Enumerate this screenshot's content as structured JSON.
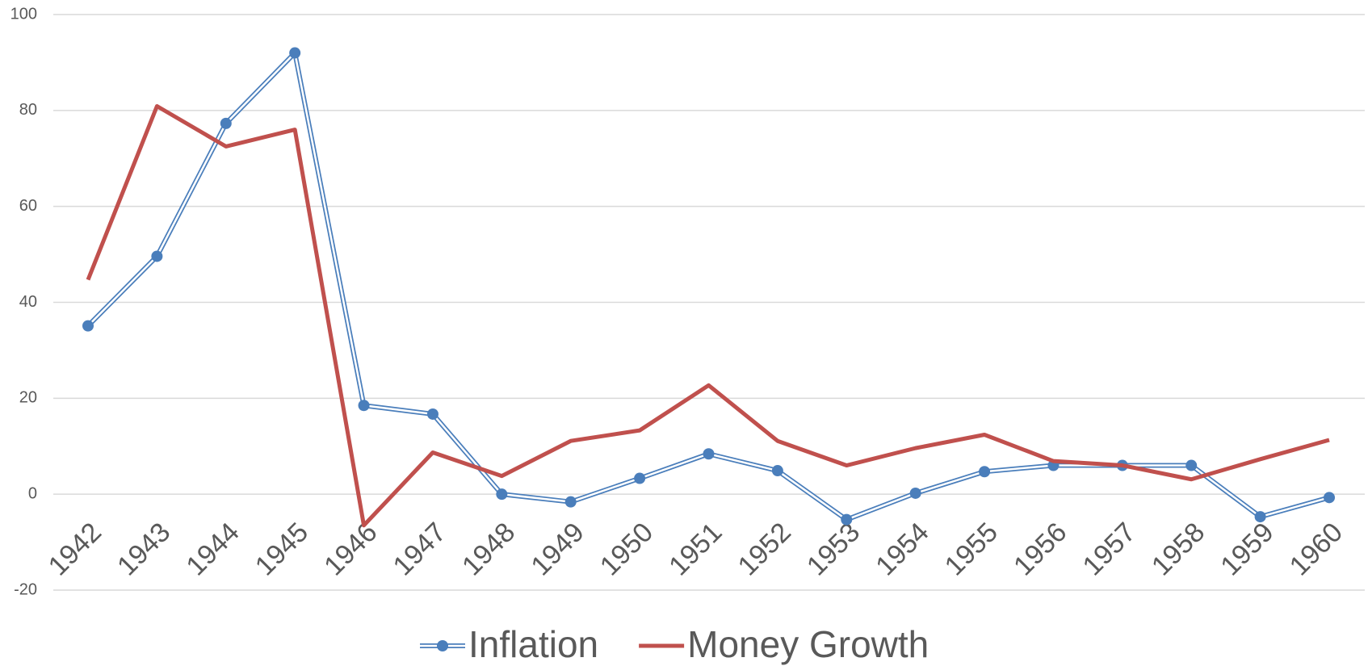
{
  "chart_data": {
    "type": "line",
    "categories": [
      "1942",
      "1943",
      "1944",
      "1945",
      "1946",
      "1947",
      "1948",
      "1949",
      "1950",
      "1951",
      "1952",
      "1953",
      "1954",
      "1955",
      "1956",
      "1957",
      "1958",
      "1959",
      "1960"
    ],
    "series": [
      {
        "name": "Inflation",
        "color": "#4a7ebb",
        "marker": true,
        "values": [
          35.1,
          49.6,
          77.3,
          92,
          18.5,
          16.7,
          0,
          -1.6,
          3.3,
          8.4,
          4.9,
          -5.3,
          0.2,
          4.7,
          6,
          6,
          6,
          -4.7,
          -0.7
        ]
      },
      {
        "name": "Money Growth",
        "color": "#c0504d",
        "marker": false,
        "values": [
          44.7,
          80.9,
          72.5,
          76,
          -6.5,
          8.7,
          3.8,
          11.1,
          13.3,
          22.7,
          11.1,
          6,
          9.6,
          12.4,
          6.9,
          6,
          3.1,
          7.3,
          11.3
        ]
      }
    ],
    "ylim": [
      -20,
      100
    ],
    "yticks": [
      -20,
      0,
      20,
      40,
      60,
      80,
      100
    ],
    "grid": true,
    "legend": "bottom"
  }
}
